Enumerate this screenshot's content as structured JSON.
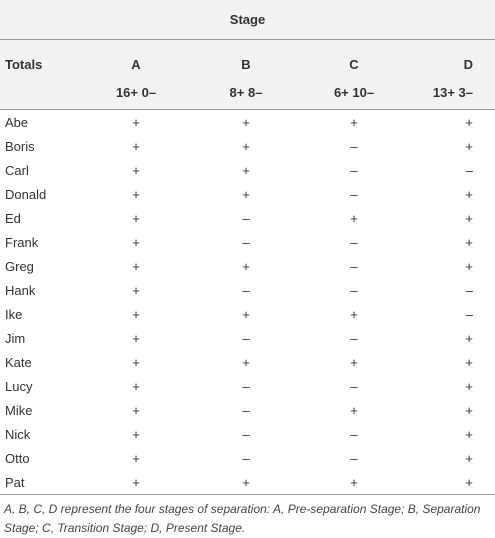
{
  "table": {
    "stage_header": "Stage",
    "totals_label": "Totals",
    "columns": [
      "A",
      "B",
      "C",
      "D"
    ],
    "totals": [
      "16+ 0–",
      "8+ 8–",
      "6+ 10–",
      "13+ 3–"
    ],
    "rows": [
      [
        "Abe",
        "+",
        "+",
        "+",
        "+"
      ],
      [
        "Boris",
        "+",
        "+",
        "–",
        "+"
      ],
      [
        "Carl",
        "+",
        "+",
        "–",
        "–"
      ],
      [
        "Donald",
        "+",
        "+",
        "–",
        "+"
      ],
      [
        "Ed",
        "+",
        "–",
        "+",
        "+"
      ],
      [
        "Frank",
        "+",
        "–",
        "–",
        "+"
      ],
      [
        "Greg",
        "+",
        "+",
        "–",
        "+"
      ],
      [
        "Hank",
        "+",
        "–",
        "–",
        "–"
      ],
      [
        "Ike",
        "+",
        "+",
        "+",
        "–"
      ],
      [
        "Jim",
        "+",
        "–",
        "–",
        "+"
      ],
      [
        "Kate",
        "+",
        "+",
        "+",
        "+"
      ],
      [
        "Lucy",
        "+",
        "–",
        "–",
        "+"
      ],
      [
        "Mike",
        "+",
        "–",
        "+",
        "+"
      ],
      [
        "Nick",
        "+",
        "–",
        "–",
        "+"
      ],
      [
        "Otto",
        "+",
        "–",
        "–",
        "+"
      ],
      [
        "Pat",
        "+",
        "+",
        "+",
        "+"
      ]
    ],
    "footnote": "A, B, C, D represent the four stages of separation: A, Pre-separation Stage; B, Separation Stage; C, Transition Stage; D, Present Stage."
  }
}
